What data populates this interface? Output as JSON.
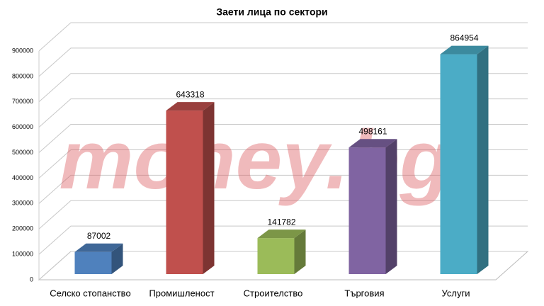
{
  "chart_data": {
    "type": "bar3d",
    "title": "Заети лица по сектори",
    "categories": [
      "Селско стопанство",
      "Промишленост",
      "Строителство",
      "Търговия",
      "Услуги"
    ],
    "values": [
      87002,
      643318,
      141782,
      498161,
      864954
    ],
    "colors": [
      "#4f81bd",
      "#c0504d",
      "#9bbb59",
      "#8064a2",
      "#4bacc6"
    ],
    "ylim": [
      0,
      900000
    ],
    "yticks": [
      0,
      100000,
      200000,
      300000,
      400000,
      500000,
      600000,
      700000,
      800000,
      900000
    ],
    "grid": true,
    "watermark": "money.bg"
  }
}
